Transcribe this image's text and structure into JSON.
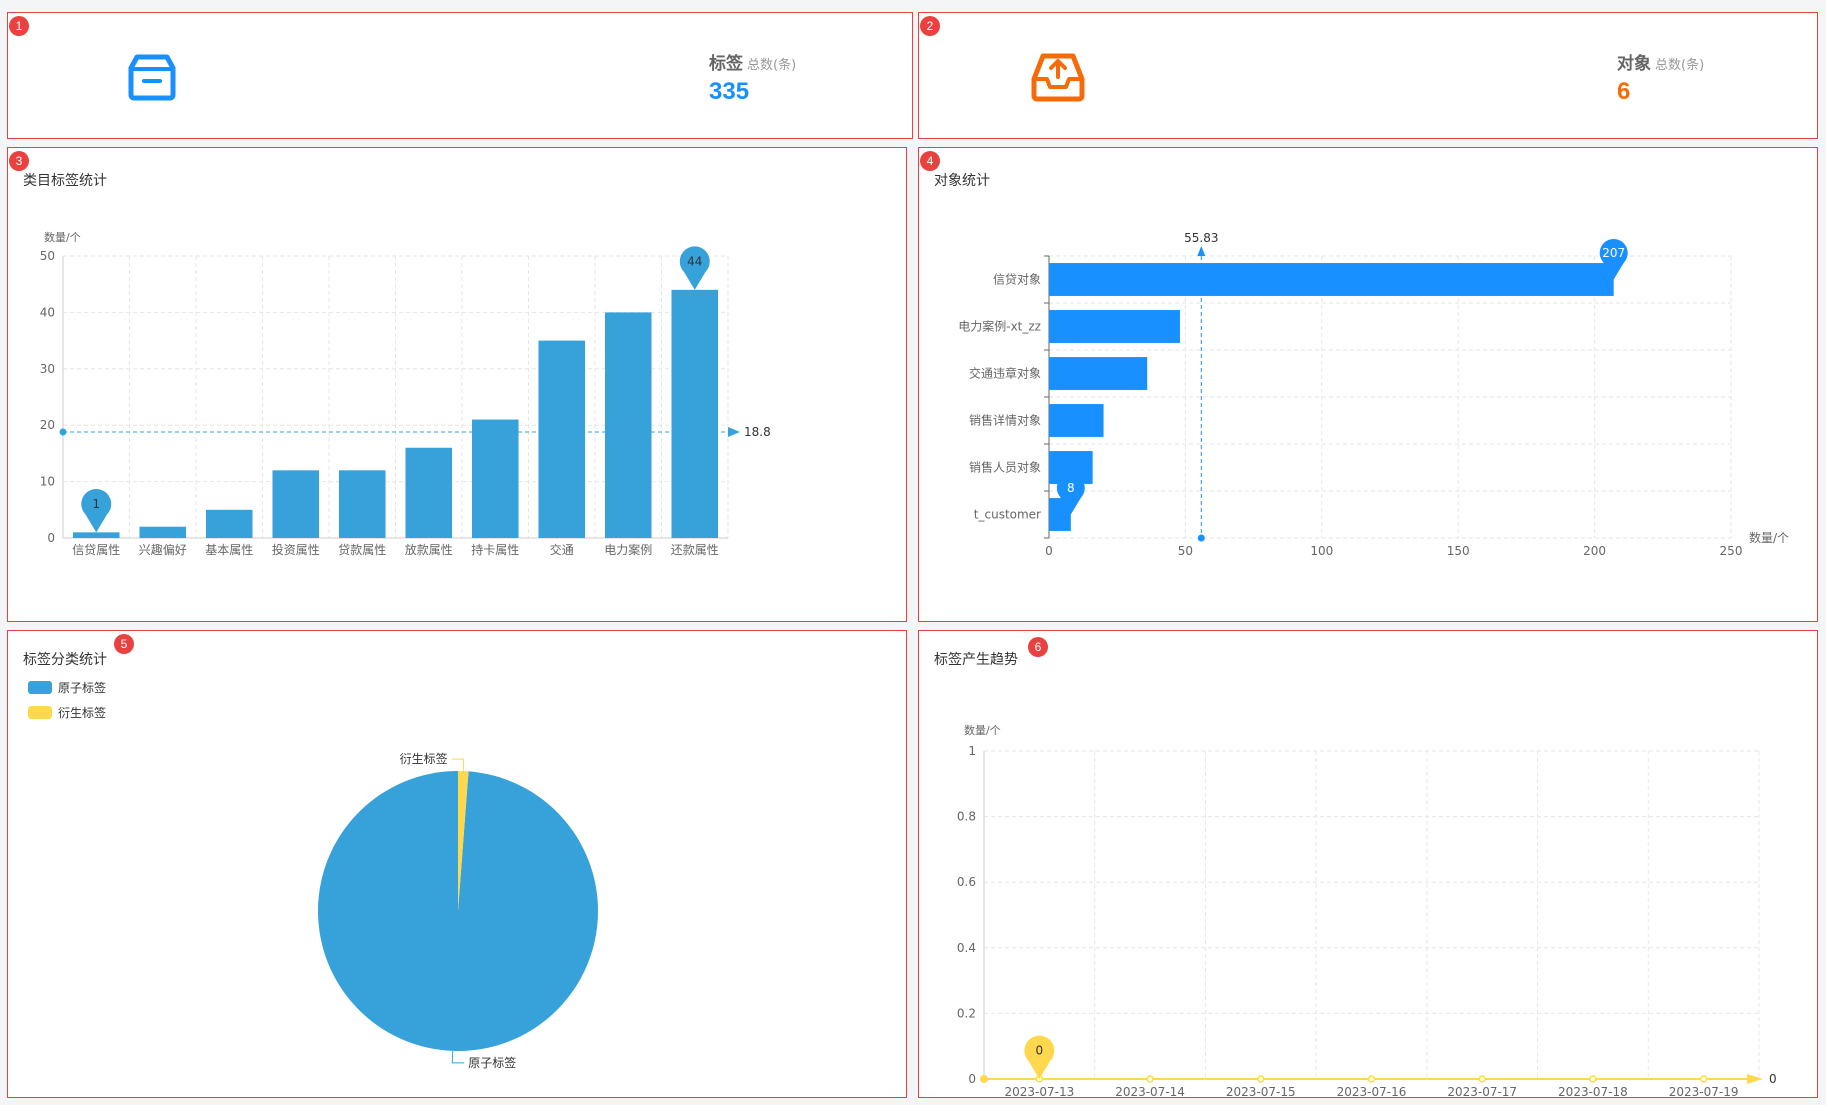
{
  "colors": {
    "blue": "#1890ff",
    "bar_blue": "#37a2da",
    "orange": "#f56b09",
    "yellow": "#ffd84e",
    "red": "#e8413f"
  },
  "cards": [
    {
      "badge": "1",
      "icon": "archive-box-icon",
      "title": "标签",
      "subtitle": "总数(条)",
      "value": "335"
    },
    {
      "badge": "2",
      "icon": "inbox-upload-icon",
      "title": "对象",
      "subtitle": "总数(条)",
      "value": "6"
    }
  ],
  "panels": {
    "p3": {
      "badge": "3",
      "title": "类目标签统计"
    },
    "p4": {
      "badge": "4",
      "title": "对象统计"
    },
    "p5": {
      "badge": "5",
      "title": "标签分类统计"
    },
    "p6": {
      "badge": "6",
      "title": "标签产生趋势"
    }
  },
  "chart_data": [
    {
      "id": "category-tags",
      "type": "bar",
      "ylabel": "数量/个",
      "categories": [
        "信贷属性",
        "兴趣偏好",
        "基本属性",
        "投资属性",
        "贷款属性",
        "放款属性",
        "持卡属性",
        "交通",
        "电力案例",
        "还款属性"
      ],
      "values": [
        1,
        2,
        5,
        12,
        12,
        16,
        21,
        35,
        40,
        44
      ],
      "ylim": [
        0,
        50
      ],
      "yticks": [
        0,
        10,
        20,
        30,
        40,
        50
      ],
      "mark_min": {
        "label": "1",
        "category": "信贷属性",
        "value": 1
      },
      "mark_max": {
        "label": "44",
        "category": "还款属性",
        "value": 44
      },
      "mark_line": {
        "label": "18.8",
        "value": 18.8
      },
      "grid": true
    },
    {
      "id": "object-stats",
      "type": "bar",
      "orientation": "horizontal",
      "xlabel": "数量/个",
      "categories": [
        "信贷对象",
        "电力案例-xt_zz",
        "交通违章对象",
        "销售详情对象",
        "销售人员对象",
        "t_customer"
      ],
      "values": [
        207,
        48,
        36,
        20,
        16,
        8
      ],
      "xlim": [
        0,
        250
      ],
      "xticks": [
        0,
        50,
        100,
        150,
        200,
        250
      ],
      "mark_max": {
        "label": "207",
        "category": "信贷对象",
        "value": 207
      },
      "mark_min": {
        "label": "8",
        "category": "t_customer",
        "value": 8
      },
      "mark_line": {
        "label": "55.83",
        "value": 55.83
      },
      "grid": true
    },
    {
      "id": "tag-classification",
      "type": "pie",
      "legend": [
        "原子标签",
        "衍生标签"
      ],
      "slices": [
        {
          "name": "原子标签",
          "value": 331
        },
        {
          "name": "衍生标签",
          "value": 4
        }
      ],
      "legend_position": "top-left"
    },
    {
      "id": "tag-trend",
      "type": "line",
      "ylabel": "数量/个",
      "x": [
        "2023-07-13",
        "2023-07-14",
        "2023-07-15",
        "2023-07-16",
        "2023-07-17",
        "2023-07-18",
        "2023-07-19"
      ],
      "values": [
        0,
        0,
        0,
        0,
        0,
        0,
        0
      ],
      "ylim": [
        0,
        1
      ],
      "yticks": [
        "0",
        "0.2",
        "0.4",
        "0.6",
        "0.8",
        "1"
      ],
      "mark_max": {
        "label": "0",
        "index": 0
      },
      "mark_line": {
        "label": "0",
        "value": 0
      },
      "grid": true
    }
  ]
}
